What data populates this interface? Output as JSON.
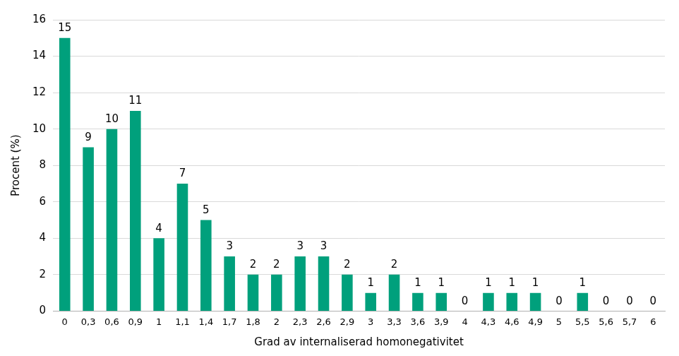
{
  "chart_data": {
    "type": "bar",
    "x_label": "Grad av internaliserad homonegativitet",
    "y_label": "Procent (%)",
    "categories": [
      "0",
      "0,3",
      "0,6",
      "0,9",
      "1",
      "1,1",
      "1,4",
      "1,7",
      "1,8",
      "2",
      "2,3",
      "2,6",
      "2,9",
      "3",
      "3,3",
      "3,6",
      "3,9",
      "4",
      "4,3",
      "4,6",
      "4,9",
      "5",
      "5,5",
      "5,6",
      "5,7",
      "6"
    ],
    "values": [
      15,
      9,
      10,
      11,
      4,
      7,
      5,
      3,
      2,
      2,
      3,
      3,
      2,
      1,
      2,
      1,
      1,
      0,
      1,
      1,
      1,
      0,
      1,
      0,
      0,
      0
    ],
    "color": "#00a07c",
    "ylim": [
      0,
      16
    ],
    "yticks": [
      0,
      2,
      4,
      6,
      8,
      10,
      12,
      14,
      16
    ],
    "grid": true,
    "data_labels": true
  }
}
